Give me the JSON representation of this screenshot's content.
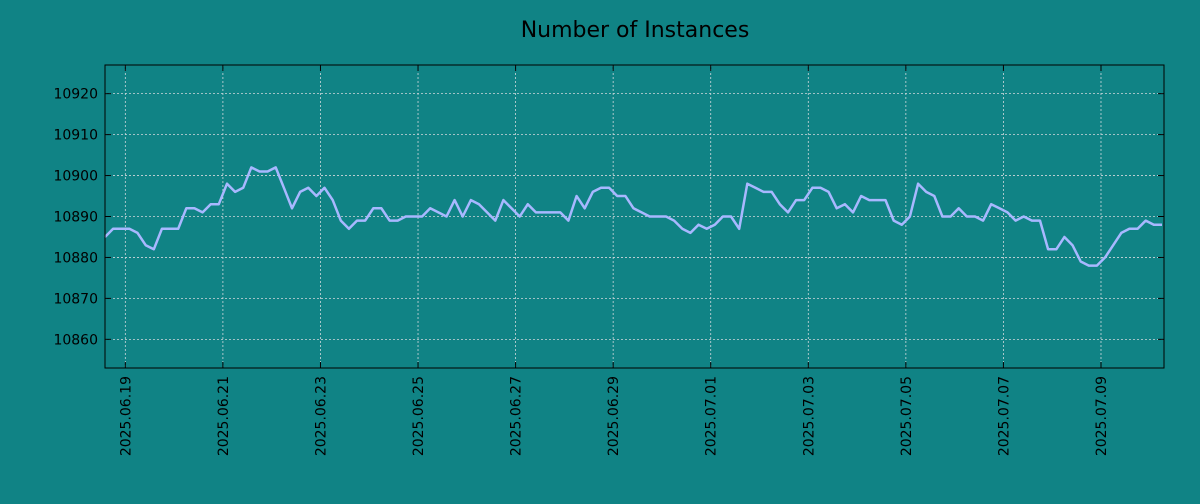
{
  "chart_data": {
    "type": "line",
    "title": "Number of Instances",
    "xlabel": "",
    "ylabel": "",
    "x_start": "2025-06-18",
    "x_end": "2025-07-10",
    "xlim": [
      "2025-06-18 14:00",
      "2025-07-10 07:00"
    ],
    "ylim": [
      10853,
      10927
    ],
    "x_ticks": [
      "2025.06.19",
      "2025.06.21",
      "2025.06.23",
      "2025.06.25",
      "2025.06.27",
      "2025.06.29",
      "2025.07.01",
      "2025.07.03",
      "2025.07.05",
      "2025.07.07",
      "2025.07.09"
    ],
    "y_ticks": [
      10860,
      10870,
      10880,
      10890,
      10900,
      10910,
      10920
    ],
    "grid": true,
    "legend": "none",
    "colors": {
      "background": "#108385",
      "plot_background": "#108385",
      "line": "#a8b8ff",
      "grid": "#cfd8dc"
    },
    "series": [
      {
        "x": [
          "2025-06-18 14:00",
          "2025-06-18 18:00",
          "2025-06-18 22:00",
          "2025-06-19 02:00",
          "2025-06-19 06:00",
          "2025-06-19 10:00",
          "2025-06-19 14:00",
          "2025-06-19 18:00",
          "2025-06-19 22:00",
          "2025-06-20 02:00",
          "2025-06-20 06:00",
          "2025-06-20 10:00",
          "2025-06-20 14:00",
          "2025-06-20 18:00",
          "2025-06-20 22:00",
          "2025-06-21 02:00",
          "2025-06-21 06:00",
          "2025-06-21 10:00",
          "2025-06-21 14:00",
          "2025-06-21 18:00",
          "2025-06-21 22:00",
          "2025-06-22 02:00",
          "2025-06-22 06:00",
          "2025-06-22 10:00",
          "2025-06-22 14:00",
          "2025-06-22 18:00",
          "2025-06-22 22:00",
          "2025-06-23 02:00",
          "2025-06-23 06:00",
          "2025-06-23 10:00",
          "2025-06-23 14:00",
          "2025-06-23 18:00",
          "2025-06-23 22:00",
          "2025-06-24 02:00",
          "2025-06-24 06:00",
          "2025-06-24 10:00",
          "2025-06-24 14:00",
          "2025-06-24 18:00",
          "2025-06-24 22:00",
          "2025-06-25 02:00",
          "2025-06-25 06:00",
          "2025-06-25 10:00",
          "2025-06-25 14:00",
          "2025-06-25 18:00",
          "2025-06-25 22:00",
          "2025-06-26 02:00",
          "2025-06-26 06:00",
          "2025-06-26 10:00",
          "2025-06-26 14:00",
          "2025-06-26 18:00",
          "2025-06-26 22:00",
          "2025-06-27 02:00",
          "2025-06-27 06:00",
          "2025-06-27 10:00",
          "2025-06-27 14:00",
          "2025-06-27 18:00",
          "2025-06-27 22:00",
          "2025-06-28 02:00",
          "2025-06-28 06:00",
          "2025-06-28 10:00",
          "2025-06-28 14:00",
          "2025-06-28 18:00",
          "2025-06-28 22:00",
          "2025-06-29 02:00",
          "2025-06-29 06:00",
          "2025-06-29 10:00",
          "2025-06-29 14:00",
          "2025-06-29 18:00",
          "2025-06-29 22:00",
          "2025-06-30 02:00",
          "2025-06-30 06:00",
          "2025-06-30 10:00",
          "2025-06-30 14:00",
          "2025-06-30 18:00",
          "2025-06-30 22:00",
          "2025-07-01 02:00",
          "2025-07-01 06:00",
          "2025-07-01 10:00",
          "2025-07-01 14:00",
          "2025-07-01 18:00",
          "2025-07-01 22:00",
          "2025-07-02 02:00",
          "2025-07-02 06:00",
          "2025-07-02 10:00",
          "2025-07-02 14:00",
          "2025-07-02 18:00",
          "2025-07-02 22:00",
          "2025-07-03 02:00",
          "2025-07-03 06:00",
          "2025-07-03 10:00",
          "2025-07-03 14:00",
          "2025-07-03 18:00",
          "2025-07-03 22:00",
          "2025-07-04 02:00",
          "2025-07-04 06:00",
          "2025-07-04 10:00",
          "2025-07-04 14:00",
          "2025-07-04 18:00",
          "2025-07-04 22:00",
          "2025-07-05 02:00",
          "2025-07-05 06:00",
          "2025-07-05 10:00",
          "2025-07-05 14:00",
          "2025-07-05 18:00",
          "2025-07-05 22:00",
          "2025-07-06 02:00",
          "2025-07-06 06:00",
          "2025-07-06 10:00",
          "2025-07-06 14:00",
          "2025-07-06 18:00",
          "2025-07-06 22:00",
          "2025-07-07 02:00",
          "2025-07-07 06:00",
          "2025-07-07 10:00",
          "2025-07-07 14:00",
          "2025-07-07 18:00",
          "2025-07-07 22:00",
          "2025-07-08 02:00",
          "2025-07-08 06:00",
          "2025-07-08 10:00",
          "2025-07-08 14:00",
          "2025-07-08 18:00",
          "2025-07-08 22:00",
          "2025-07-09 02:00",
          "2025-07-09 06:00",
          "2025-07-09 10:00",
          "2025-07-09 14:00",
          "2025-07-09 18:00",
          "2025-07-09 22:00",
          "2025-07-10 02:00",
          "2025-07-10 06:00"
        ],
        "values": [
          10885,
          10887,
          10887,
          10887,
          10886,
          10883,
          10882,
          10887,
          10887,
          10887,
          10892,
          10892,
          10891,
          10893,
          10893,
          10898,
          10896,
          10897,
          10902,
          10901,
          10901,
          10902,
          10897,
          10892,
          10896,
          10897,
          10895,
          10897,
          10894,
          10889,
          10887,
          10889,
          10889,
          10892,
          10892,
          10889,
          10889,
          10890,
          10890,
          10890,
          10892,
          10891,
          10890,
          10894,
          10890,
          10894,
          10893,
          10891,
          10889,
          10894,
          10892,
          10890,
          10893,
          10891,
          10891,
          10891,
          10891,
          10889,
          10895,
          10892,
          10896,
          10897,
          10897,
          10895,
          10895,
          10892,
          10891,
          10890,
          10890,
          10890,
          10889,
          10887,
          10886,
          10888,
          10887,
          10888,
          10890,
          10890,
          10887,
          10898,
          10897,
          10896,
          10896,
          10893,
          10891,
          10894,
          10894,
          10897,
          10897,
          10896,
          10892,
          10893,
          10891,
          10895,
          10894,
          10894,
          10894,
          10889,
          10888,
          10890,
          10898,
          10896,
          10895,
          10890,
          10890,
          10892,
          10890,
          10890,
          10889,
          10893,
          10892,
          10891,
          10889,
          10890,
          10889,
          10889,
          10882,
          10882,
          10885,
          10883,
          10879,
          10878,
          10878,
          10880,
          10883,
          10886,
          10887,
          10887,
          10889,
          10888,
          10888
        ]
      }
    ]
  }
}
